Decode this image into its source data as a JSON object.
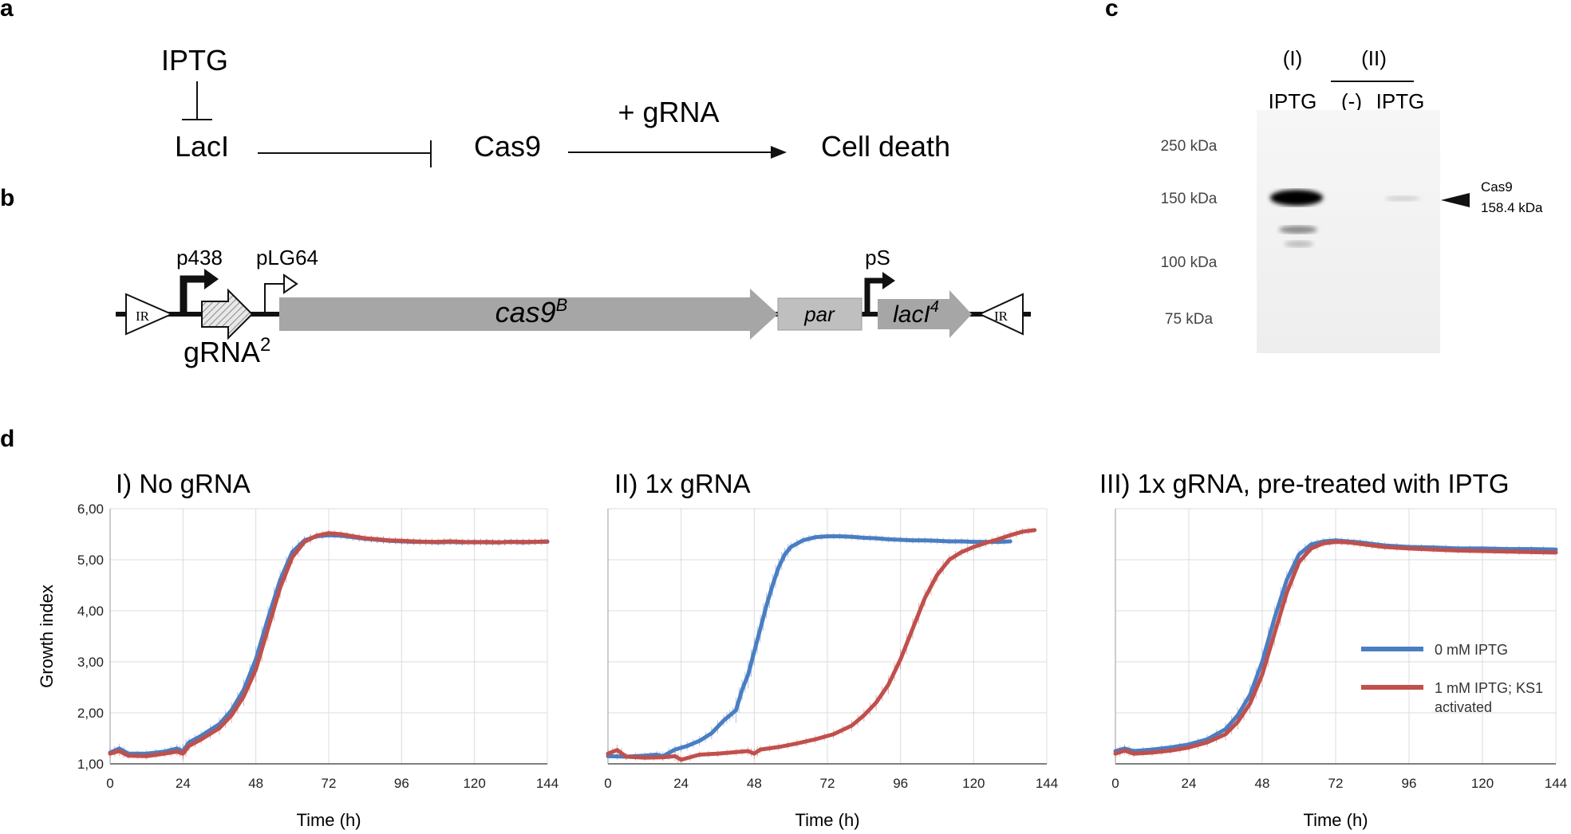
{
  "panels": {
    "a": "a",
    "b": "b",
    "c": "c",
    "d": "d"
  },
  "panel_a": {
    "iptg": "IPTG",
    "laci": "LacI",
    "cas9": "Cas9",
    "grna": "+ gRNA",
    "death": "Cell death"
  },
  "panel_b": {
    "ir": "IR",
    "p438": "p438",
    "plg64": "pLG64",
    "grna_base": "gRNA",
    "grna_sup": "2",
    "cas9_base": "cas9",
    "cas9_sup": "B",
    "par": "par",
    "ps": "pS",
    "laci_base": "lacI",
    "laci_sup": "4",
    "colors": {
      "gene": "#a6a6a6",
      "par": "#bfbfbf"
    }
  },
  "panel_c": {
    "group1": "(I)",
    "group2": "(II)",
    "lane1": "IPTG",
    "lane2": "(-)",
    "lane3": "IPTG",
    "markers": [
      "250 kDa",
      "150 kDa",
      "100 kDa",
      "75 kDa"
    ],
    "band_label_1": "Cas9",
    "band_label_2": "158.4 kDa"
  },
  "chart_data": [
    {
      "type": "line",
      "title": "I) No gRNA",
      "xlabel": "Time (h)",
      "ylabel": "Growth index",
      "xlim": [
        0,
        144
      ],
      "ylim": [
        1,
        6
      ],
      "xticks": [
        "0",
        "24",
        "48",
        "72",
        "96",
        "120",
        "144"
      ],
      "yticks": [
        "1,00",
        "2,00",
        "3,00",
        "4,00",
        "5,00",
        "6,00"
      ],
      "grid": true,
      "series": [
        {
          "name": "0 mM IPTG",
          "color": "#4a7ec2",
          "x": [
            0,
            3,
            6,
            12,
            18,
            22,
            24,
            26,
            30,
            36,
            40,
            44,
            48,
            52,
            56,
            60,
            64,
            68,
            72,
            76,
            80,
            84,
            88,
            92,
            96,
            100,
            104,
            108,
            112,
            116,
            120,
            124,
            128,
            132,
            136,
            140,
            144
          ],
          "y": [
            1.22,
            1.3,
            1.2,
            1.2,
            1.24,
            1.3,
            1.25,
            1.42,
            1.55,
            1.78,
            2.05,
            2.45,
            3.05,
            3.85,
            4.6,
            5.15,
            5.38,
            5.46,
            5.48,
            5.47,
            5.44,
            5.41,
            5.39,
            5.37,
            5.36,
            5.35,
            5.35,
            5.34,
            5.35,
            5.34,
            5.35,
            5.34,
            5.34,
            5.35,
            5.34,
            5.35,
            5.35
          ]
        },
        {
          "name": "1 mM IPTG; KS1 activated",
          "color": "#c0504d",
          "x": [
            0,
            3,
            6,
            12,
            18,
            22,
            24,
            26,
            30,
            36,
            40,
            44,
            48,
            52,
            56,
            60,
            64,
            68,
            72,
            76,
            80,
            84,
            88,
            92,
            96,
            100,
            104,
            108,
            112,
            116,
            120,
            124,
            128,
            132,
            136,
            140,
            144
          ],
          "y": [
            1.2,
            1.25,
            1.16,
            1.15,
            1.2,
            1.24,
            1.2,
            1.35,
            1.48,
            1.7,
            1.95,
            2.32,
            2.85,
            3.65,
            4.45,
            5.05,
            5.35,
            5.47,
            5.52,
            5.5,
            5.46,
            5.42,
            5.4,
            5.38,
            5.37,
            5.36,
            5.35,
            5.35,
            5.36,
            5.35,
            5.34,
            5.35,
            5.34,
            5.35,
            5.35,
            5.35,
            5.36
          ]
        }
      ]
    },
    {
      "type": "line",
      "title": "II) 1x gRNA",
      "xlabel": "Time (h)",
      "xlim": [
        0,
        144
      ],
      "ylim": [
        1,
        6
      ],
      "xticks": [
        "0",
        "24",
        "48",
        "72",
        "96",
        "120",
        "144"
      ],
      "grid": true,
      "series": [
        {
          "name": "0 mM IPTG",
          "color": "#4a7ec2",
          "x": [
            0,
            6,
            12,
            16,
            18,
            22,
            26,
            30,
            34,
            38,
            40,
            42,
            44,
            46,
            48,
            50,
            52,
            54,
            56,
            58,
            60,
            64,
            68,
            72,
            76,
            80,
            84,
            88,
            92,
            96,
            100,
            104,
            108,
            112,
            116,
            120,
            124,
            128,
            132
          ],
          "y": [
            1.15,
            1.14,
            1.16,
            1.18,
            1.15,
            1.28,
            1.35,
            1.45,
            1.6,
            1.85,
            1.95,
            2.05,
            2.45,
            2.75,
            3.2,
            3.65,
            4.1,
            4.5,
            4.85,
            5.1,
            5.25,
            5.38,
            5.44,
            5.46,
            5.46,
            5.45,
            5.43,
            5.42,
            5.4,
            5.39,
            5.38,
            5.38,
            5.37,
            5.36,
            5.36,
            5.35,
            5.35,
            5.35,
            5.36
          ]
        },
        {
          "name": "1 mM IPTG; KS1 activated",
          "color": "#c0504d",
          "x": [
            0,
            3,
            6,
            12,
            18,
            22,
            24,
            30,
            36,
            42,
            46,
            48,
            50,
            56,
            62,
            68,
            74,
            80,
            84,
            88,
            92,
            96,
            100,
            104,
            108,
            112,
            116,
            120,
            124,
            128,
            132,
            136,
            140
          ],
          "y": [
            1.2,
            1.27,
            1.14,
            1.12,
            1.13,
            1.15,
            1.08,
            1.18,
            1.2,
            1.23,
            1.25,
            1.2,
            1.28,
            1.33,
            1.4,
            1.48,
            1.58,
            1.75,
            1.95,
            2.2,
            2.55,
            3.05,
            3.65,
            4.25,
            4.7,
            5.0,
            5.15,
            5.25,
            5.33,
            5.4,
            5.48,
            5.55,
            5.58
          ]
        }
      ]
    },
    {
      "type": "line",
      "title": "III) 1x gRNA, pre-treated with IPTG",
      "xlabel": "Time (h)",
      "xlim": [
        0,
        144
      ],
      "ylim": [
        1,
        6
      ],
      "xticks": [
        "0",
        "24",
        "48",
        "72",
        "96",
        "120",
        "144"
      ],
      "grid": true,
      "legend": "right",
      "series": [
        {
          "name": "0 mM IPTG",
          "color": "#4a7ec2",
          "x": [
            0,
            3,
            6,
            12,
            18,
            24,
            30,
            36,
            40,
            44,
            48,
            52,
            56,
            60,
            64,
            68,
            72,
            76,
            80,
            84,
            88,
            96,
            104,
            112,
            120,
            128,
            136,
            144
          ],
          "y": [
            1.25,
            1.3,
            1.25,
            1.28,
            1.32,
            1.38,
            1.48,
            1.68,
            1.95,
            2.35,
            3.0,
            3.85,
            4.6,
            5.1,
            5.3,
            5.36,
            5.38,
            5.36,
            5.34,
            5.31,
            5.28,
            5.25,
            5.24,
            5.22,
            5.22,
            5.21,
            5.21,
            5.2
          ]
        },
        {
          "name": "1 mM IPTG; KS1 activated",
          "color": "#c0504d",
          "x": [
            0,
            3,
            6,
            12,
            18,
            24,
            30,
            36,
            40,
            44,
            48,
            52,
            56,
            60,
            64,
            68,
            72,
            76,
            80,
            84,
            88,
            96,
            104,
            112,
            120,
            128,
            136,
            144
          ],
          "y": [
            1.2,
            1.26,
            1.2,
            1.22,
            1.26,
            1.32,
            1.42,
            1.58,
            1.82,
            2.18,
            2.75,
            3.55,
            4.35,
            4.95,
            5.22,
            5.32,
            5.35,
            5.34,
            5.31,
            5.28,
            5.25,
            5.22,
            5.2,
            5.18,
            5.17,
            5.16,
            5.15,
            5.14
          ]
        }
      ]
    }
  ]
}
